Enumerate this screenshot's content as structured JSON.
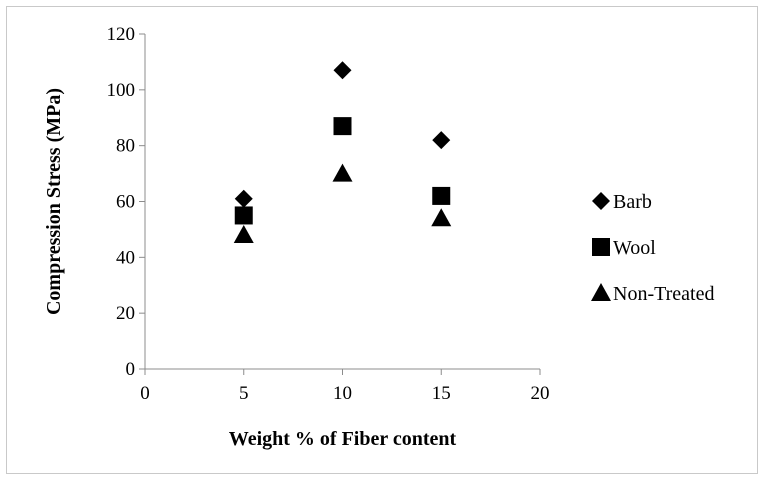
{
  "chart_data": {
    "type": "scatter",
    "title": "",
    "xlabel": "Weight % of Fiber content",
    "ylabel": "Compression Stress (MPa)",
    "xlim": [
      0,
      20
    ],
    "ylim": [
      0,
      120
    ],
    "xticks": [
      0,
      5,
      10,
      15,
      20
    ],
    "yticks": [
      0,
      20,
      40,
      60,
      80,
      100,
      120
    ],
    "grid": false,
    "legend_position": "right",
    "series": [
      {
        "name": "Barb",
        "marker": "diamond",
        "color": "#000000",
        "points": [
          {
            "x": 5,
            "y": 61
          },
          {
            "x": 10,
            "y": 107
          },
          {
            "x": 15,
            "y": 82
          }
        ]
      },
      {
        "name": "Wool",
        "marker": "square",
        "color": "#000000",
        "points": [
          {
            "x": 5,
            "y": 55
          },
          {
            "x": 10,
            "y": 87
          },
          {
            "x": 15,
            "y": 62
          }
        ]
      },
      {
        "name": "Non-Treated",
        "marker": "triangle",
        "color": "#000000",
        "points": [
          {
            "x": 5,
            "y": 48
          },
          {
            "x": 10,
            "y": 70
          },
          {
            "x": 15,
            "y": 54
          }
        ]
      }
    ]
  }
}
